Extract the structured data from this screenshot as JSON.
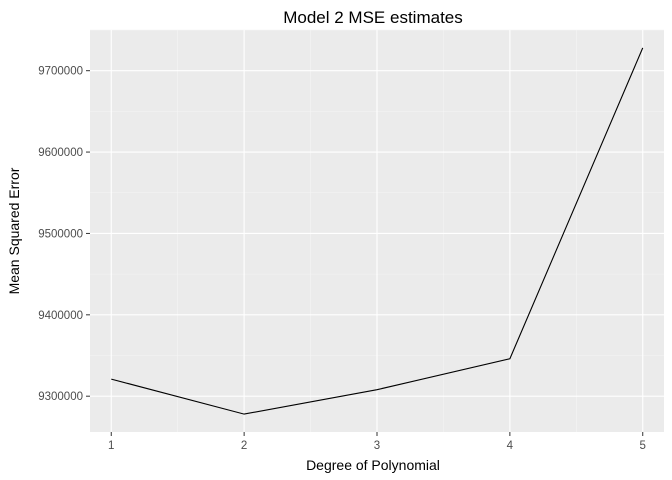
{
  "chart_data": {
    "type": "line",
    "title": "Model 2 MSE estimates",
    "xlabel": "Degree of Polynomial",
    "ylabel": "Mean Squared Error",
    "x": [
      1,
      2,
      3,
      4,
      5
    ],
    "y": [
      9321000,
      9278000,
      9308000,
      9346000,
      9728000
    ],
    "xlim": [
      0.84,
      5.16
    ],
    "ylim": [
      9256000,
      9750000
    ],
    "xticks": [
      1,
      2,
      3,
      4,
      5
    ],
    "xtick_labels": [
      "1",
      "2",
      "3",
      "4",
      "5"
    ],
    "yticks": [
      9300000,
      9400000,
      9500000,
      9600000,
      9700000
    ],
    "ytick_labels": [
      "9300000",
      "9400000",
      "9500000",
      "9600000",
      "9700000"
    ],
    "grid": true,
    "legend": false
  },
  "colors": {
    "panel_background": "#ebebeb",
    "grid_major": "#ffffff",
    "grid_minor": "#f5f5f5",
    "line": "#000000",
    "tick_mark": "#333333"
  }
}
